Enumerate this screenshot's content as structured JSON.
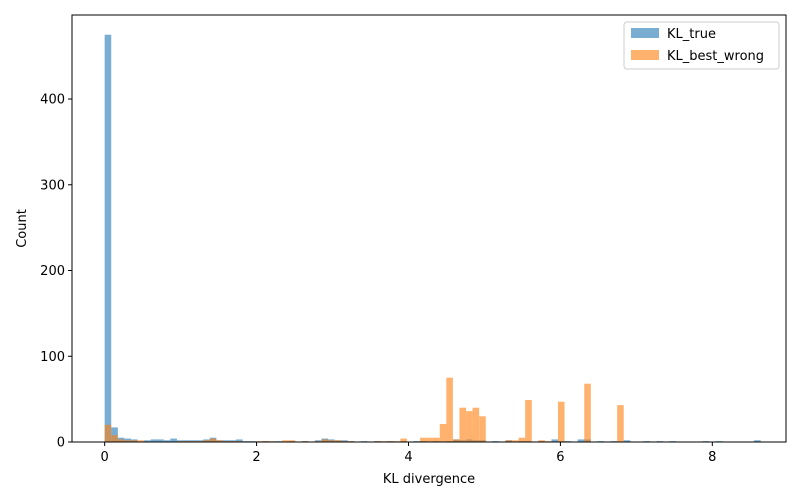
{
  "chart_data": {
    "type": "histogram",
    "title": "",
    "xlabel": "KL divergence",
    "ylabel": "Count",
    "xlim": [
      -0.43,
      8.97
    ],
    "ylim": [
      0,
      498
    ],
    "xticks": [
      0,
      2,
      4,
      6,
      8
    ],
    "yticks": [
      0,
      100,
      200,
      300,
      400
    ],
    "bin_width": 0.0865,
    "legend": {
      "position": "upper right"
    },
    "series": [
      {
        "name": "KL_true",
        "color": "#1f77b4",
        "alpha": 0.6,
        "bins": [
          [
            0.0,
            475
          ],
          [
            0.087,
            17
          ],
          [
            0.173,
            5
          ],
          [
            0.26,
            4
          ],
          [
            0.346,
            3
          ],
          [
            0.519,
            2
          ],
          [
            0.606,
            3
          ],
          [
            0.692,
            3
          ],
          [
            0.779,
            2
          ],
          [
            0.865,
            4
          ],
          [
            0.952,
            2
          ],
          [
            1.038,
            2
          ],
          [
            1.125,
            2
          ],
          [
            1.211,
            2
          ],
          [
            1.298,
            3
          ],
          [
            1.384,
            5
          ],
          [
            1.471,
            2
          ],
          [
            1.557,
            2
          ],
          [
            1.644,
            2
          ],
          [
            1.73,
            3
          ],
          [
            1.817,
            1
          ],
          [
            1.903,
            1
          ],
          [
            2.076,
            1
          ],
          [
            2.249,
            1
          ],
          [
            2.422,
            1
          ],
          [
            2.595,
            1
          ],
          [
            2.768,
            2
          ],
          [
            2.855,
            4
          ],
          [
            2.941,
            3
          ],
          [
            3.028,
            2
          ],
          [
            3.114,
            2
          ],
          [
            3.201,
            1
          ],
          [
            3.374,
            1
          ],
          [
            3.547,
            1
          ],
          [
            3.72,
            1
          ],
          [
            3.893,
            1
          ],
          [
            4.066,
            1
          ],
          [
            4.153,
            1
          ],
          [
            4.325,
            1
          ],
          [
            4.498,
            1
          ],
          [
            4.585,
            3
          ],
          [
            4.671,
            2
          ],
          [
            4.758,
            3
          ],
          [
            4.844,
            2
          ],
          [
            4.931,
            2
          ],
          [
            5.104,
            1
          ],
          [
            5.277,
            2
          ],
          [
            5.45,
            1
          ],
          [
            5.536,
            1
          ],
          [
            5.709,
            1
          ],
          [
            5.882,
            3
          ],
          [
            5.968,
            1
          ],
          [
            6.055,
            1
          ],
          [
            6.228,
            3
          ],
          [
            6.314,
            3
          ],
          [
            6.487,
            1
          ],
          [
            6.66,
            1
          ],
          [
            6.833,
            2
          ],
          [
            7.092,
            1
          ],
          [
            7.265,
            1
          ],
          [
            7.438,
            1
          ],
          [
            7.871,
            1
          ],
          [
            8.044,
            1
          ],
          [
            8.55,
            2
          ]
        ]
      },
      {
        "name": "KL_best_wrong",
        "color": "#ff7f0e",
        "alpha": 0.6,
        "bins": [
          [
            0.0,
            20
          ],
          [
            0.087,
            8
          ],
          [
            0.173,
            3
          ],
          [
            0.26,
            2
          ],
          [
            0.346,
            2
          ],
          [
            0.433,
            2
          ],
          [
            0.952,
            1
          ],
          [
            1.038,
            1
          ],
          [
            1.125,
            1
          ],
          [
            1.211,
            1
          ],
          [
            1.298,
            2
          ],
          [
            1.384,
            4
          ],
          [
            1.471,
            2
          ],
          [
            1.557,
            1
          ],
          [
            1.644,
            1
          ],
          [
            1.73,
            1
          ],
          [
            1.99,
            1
          ],
          [
            2.076,
            1
          ],
          [
            2.163,
            1
          ],
          [
            2.336,
            2
          ],
          [
            2.422,
            2
          ],
          [
            2.595,
            1
          ],
          [
            2.768,
            1
          ],
          [
            2.855,
            3
          ],
          [
            2.941,
            2
          ],
          [
            3.028,
            2
          ],
          [
            3.114,
            1
          ],
          [
            3.201,
            1
          ],
          [
            3.547,
            1
          ],
          [
            3.633,
            1
          ],
          [
            3.72,
            1
          ],
          [
            3.806,
            1
          ],
          [
            3.893,
            4
          ],
          [
            4.153,
            5
          ],
          [
            4.239,
            5
          ],
          [
            4.325,
            5
          ],
          [
            4.412,
            21
          ],
          [
            4.498,
            75
          ],
          [
            4.585,
            3
          ],
          [
            4.671,
            40
          ],
          [
            4.758,
            36
          ],
          [
            4.844,
            40
          ],
          [
            4.931,
            30
          ],
          [
            5.277,
            2
          ],
          [
            5.363,
            2
          ],
          [
            5.45,
            5
          ],
          [
            5.536,
            49
          ],
          [
            5.709,
            2
          ],
          [
            5.796,
            1
          ],
          [
            5.968,
            47
          ],
          [
            6.314,
            68
          ],
          [
            6.747,
            43
          ]
        ]
      }
    ]
  }
}
